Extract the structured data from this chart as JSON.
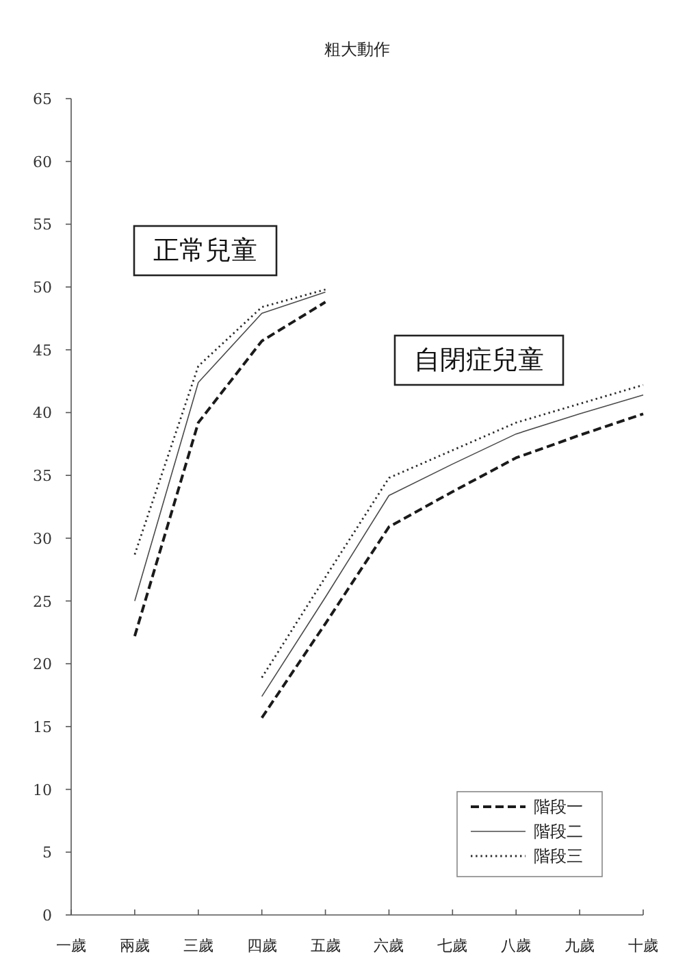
{
  "chart_data": {
    "type": "line",
    "title": "粗大動作",
    "categories": [
      "一歲",
      "兩歲",
      "三歲",
      "四歲",
      "五歲",
      "六歲",
      "七歲",
      "八歲",
      "九歲",
      "十歲"
    ],
    "ylim": [
      0,
      65
    ],
    "yticks": [
      0,
      5,
      10,
      15,
      20,
      25,
      30,
      35,
      40,
      45,
      50,
      55,
      60,
      65
    ],
    "series": [
      {
        "name": "階段一",
        "color": "#1a1a1a",
        "line_style": "dashed",
        "values": [
          null,
          22.2,
          39.2,
          45.7,
          48.8,
          null,
          null,
          null,
          null,
          null
        ]
      },
      {
        "name": "階段二",
        "color": "#4a4a4a",
        "line_style": "solid",
        "values": [
          null,
          25,
          42.4,
          47.9,
          49.6,
          null,
          null,
          null,
          null,
          null
        ]
      },
      {
        "name": "階段三",
        "color": "#2a2a2a",
        "line_style": "dotted",
        "values": [
          null,
          28.7,
          43.7,
          48.4,
          49.8,
          null,
          null,
          null,
          null,
          null
        ]
      },
      {
        "color": "#1a1a1a",
        "line_style": "dashed",
        "values": [
          null,
          null,
          null,
          15.7,
          23.2,
          30.9,
          33.7,
          36.4,
          38.2,
          39.9
        ]
      },
      {
        "color": "#4a4a4a",
        "line_style": "solid",
        "values": [
          null,
          null,
          null,
          17.4,
          25.3,
          33.4,
          35.9,
          38.3,
          39.9,
          41.4
        ]
      },
      {
        "color": "#2a2a2a",
        "line_style": "dotted",
        "values": [
          null,
          null,
          null,
          18.9,
          26.9,
          34.8,
          37,
          39.2,
          40.7,
          42.2
        ]
      }
    ],
    "annotations": [
      "正常兒童",
      "自閉症兒童"
    ],
    "legend": "bottom right",
    "grid": false
  }
}
